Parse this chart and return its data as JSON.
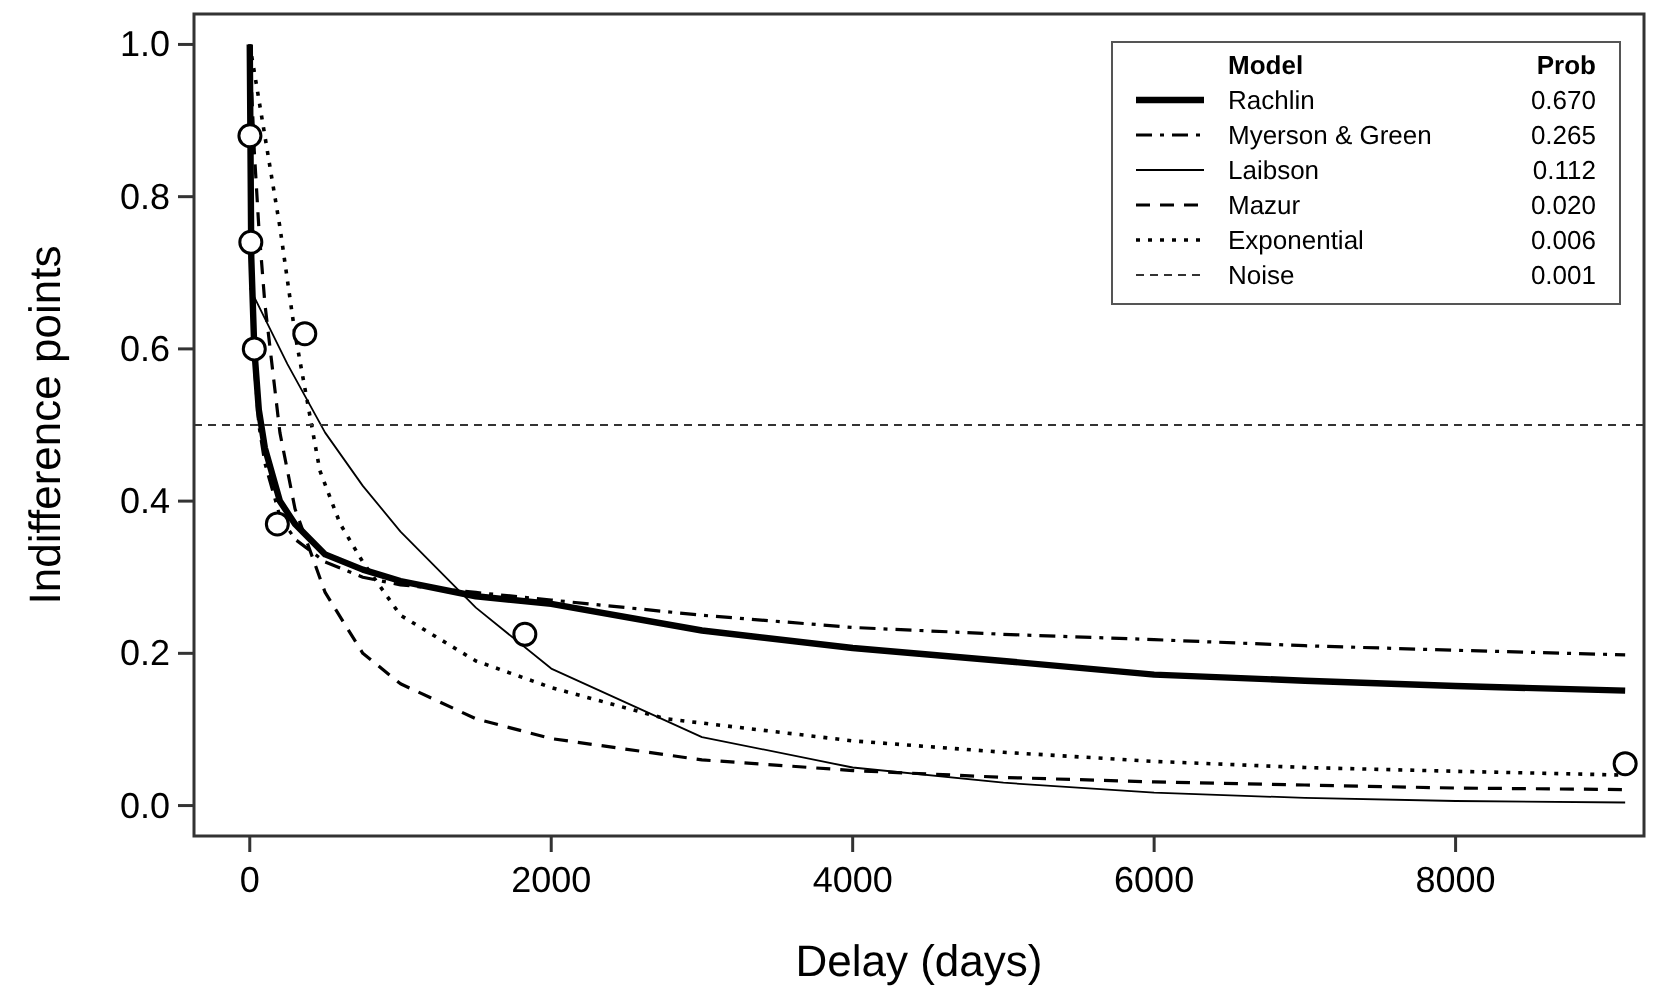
{
  "chart_data": {
    "type": "line",
    "xlabel": "Delay (days)",
    "ylabel": "Indifference points",
    "legend_title": "Model",
    "legend": "top right",
    "grid": false,
    "xlim": [
      -370,
      9250
    ],
    "ylim": [
      -0.04,
      1.04
    ],
    "xticks": [
      0,
      2000,
      4000,
      6000,
      8000
    ],
    "yticks": [
      {
        "value": 0,
        "label": "0.0"
      },
      {
        "value": 0.2,
        "label": "0.2"
      },
      {
        "value": 0.4,
        "label": "0.4"
      },
      {
        "value": 0.6,
        "label": "0.6"
      },
      {
        "value": 0.8,
        "label": "0.8"
      },
      {
        "value": 1,
        "label": "1.0"
      }
    ],
    "annotations": [
      "Prob",
      "0.670",
      "0.265",
      "0.112",
      "0.020",
      "0.006",
      "0.001"
    ],
    "series": [
      {
        "name": "Rachlin",
        "color": "#000000",
        "line_style": "solid",
        "marker": "none",
        "x": [
          0,
          10,
          30,
          60,
          100,
          200,
          300,
          500,
          750,
          1000,
          1500,
          2000,
          3000,
          4000,
          5000,
          6000,
          7000,
          8000,
          9125
        ],
        "values": [
          1,
          0.72,
          0.6,
          0.52,
          0.47,
          0.4,
          0.37,
          0.33,
          0.31,
          0.295,
          0.275,
          0.265,
          0.23,
          0.207,
          0.19,
          0.172,
          0.164,
          0.157,
          0.151
        ]
      },
      {
        "name": "Myerson & Green",
        "color": "#000000",
        "line_style": "dashdot",
        "marker": "none",
        "x": [
          0,
          10,
          30,
          60,
          100,
          200,
          300,
          500,
          750,
          1000,
          1500,
          2000,
          3000,
          4000,
          5000,
          6000,
          7000,
          8000,
          9125
        ],
        "values": [
          1,
          0.7,
          0.58,
          0.5,
          0.45,
          0.38,
          0.35,
          0.32,
          0.3,
          0.29,
          0.28,
          0.27,
          0.25,
          0.234,
          0.225,
          0.218,
          0.21,
          0.204,
          0.198
        ]
      },
      {
        "name": "Laibson",
        "color": "#000000",
        "line_style": "solid",
        "marker": "none",
        "x": [
          0,
          250,
          500,
          750,
          1000,
          1500,
          2000,
          3000,
          4000,
          5000,
          6000,
          7000,
          8000,
          9125
        ],
        "values": [
          0.68,
          0.58,
          0.49,
          0.42,
          0.36,
          0.26,
          0.18,
          0.09,
          0.05,
          0.03,
          0.017,
          0.01,
          0.006,
          0.004
        ]
      },
      {
        "name": "Mazur",
        "color": "#000000",
        "line_style": "dashed",
        "marker": "none",
        "x": [
          0,
          10,
          30,
          60,
          100,
          200,
          300,
          500,
          750,
          1000,
          1500,
          2000,
          3000,
          4000,
          5000,
          6000,
          7000,
          8000,
          9125
        ],
        "values": [
          1,
          0.95,
          0.86,
          0.76,
          0.66,
          0.49,
          0.39,
          0.28,
          0.2,
          0.16,
          0.114,
          0.088,
          0.06,
          0.046,
          0.037,
          0.031,
          0.027,
          0.023,
          0.021
        ]
      },
      {
        "name": "Exponential",
        "color": "#000000",
        "line_style": "dotted",
        "marker": "none",
        "x": [
          0,
          100,
          200,
          300,
          465,
          600,
          750,
          1000,
          1500,
          2000,
          2760,
          4000,
          5000,
          6000,
          7000,
          8000,
          9125
        ],
        "values": [
          1,
          0.88,
          0.76,
          0.62,
          0.44,
          0.37,
          0.32,
          0.25,
          0.19,
          0.155,
          0.114,
          0.085,
          0.07,
          0.058,
          0.05,
          0.045,
          0.04
        ]
      },
      {
        "name": "Noise",
        "color": "#333333",
        "line_style": "dashed",
        "marker": "none",
        "x": [
          -370,
          9250
        ],
        "values": [
          0.5,
          0.5
        ]
      },
      {
        "type": "scatter",
        "color": "#000000",
        "marker": "circle",
        "x": [
          1,
          7,
          30,
          183,
          365,
          1825,
          9125
        ],
        "values": [
          0.88,
          0.74,
          0.6,
          0.37,
          0.62,
          0.225,
          0.055
        ]
      }
    ]
  }
}
